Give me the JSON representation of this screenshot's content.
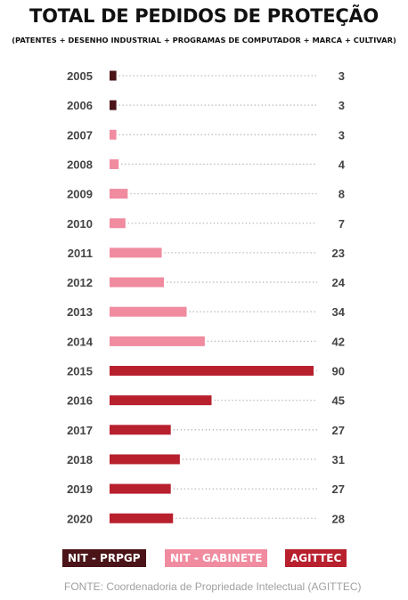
{
  "title": "TOTAL DE PEDIDOS DE PROTEÇÃO",
  "subtitle": "(PATENTES + DESENHO INDUSTRIAL + PROGRAMAS DE COMPUTADOR + MARCA + CULTIVAR)",
  "colors": {
    "NIT - PRPGP": "#4a1418",
    "NIT - GABINETE": "#f08ba0",
    "AGITTEC": "#b8202e"
  },
  "legend": [
    "NIT - PRPGP",
    "NIT - GABINETE",
    "AGITTEC"
  ],
  "source": "FONTE: Coordenadoria de Propriedade Intelectual (AGITTEC)",
  "chart_data": {
    "type": "bar",
    "orientation": "horizontal",
    "categories": [
      "2005",
      "2006",
      "2007",
      "2008",
      "2009",
      "2010",
      "2011",
      "2012",
      "2013",
      "2014",
      "2015",
      "2016",
      "2017",
      "2018",
      "2019",
      "2020"
    ],
    "values": [
      3,
      3,
      3,
      4,
      8,
      7,
      23,
      24,
      34,
      42,
      90,
      45,
      27,
      31,
      27,
      28
    ],
    "series_by_bar": [
      "NIT - PRPGP",
      "NIT - PRPGP",
      "NIT - GABINETE",
      "NIT - GABINETE",
      "NIT - GABINETE",
      "NIT - GABINETE",
      "NIT - GABINETE",
      "NIT - GABINETE",
      "NIT - GABINETE",
      "NIT - GABINETE",
      "AGITTEC",
      "AGITTEC",
      "AGITTEC",
      "AGITTEC",
      "AGITTEC",
      "AGITTEC"
    ],
    "title": "TOTAL DE PEDIDOS DE PROTEÇÃO",
    "xlabel": "",
    "ylabel": "",
    "xlim": [
      0,
      90
    ],
    "legend_position": "bottom",
    "grid": false
  }
}
